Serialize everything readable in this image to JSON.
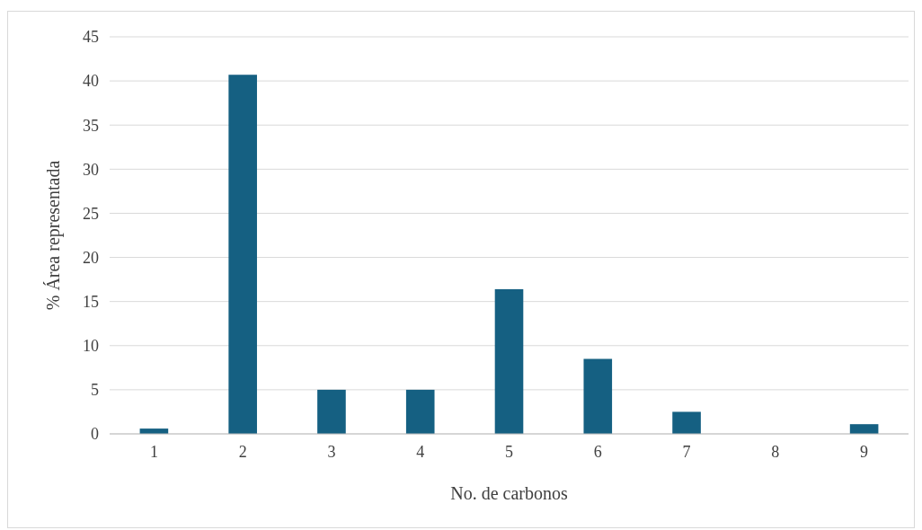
{
  "chart_data": {
    "type": "bar",
    "xlabel": "No. de carbonos",
    "ylabel": "% Área representada",
    "categories": [
      "1",
      "2",
      "3",
      "4",
      "5",
      "6",
      "7",
      "8",
      "9"
    ],
    "values": [
      0.6,
      40.7,
      5.0,
      5.0,
      16.4,
      8.5,
      2.5,
      0,
      1.1
    ],
    "color": "#156082",
    "ylim": [
      0,
      45
    ],
    "yticks": [
      0,
      5,
      10,
      15,
      20,
      25,
      30,
      35,
      40,
      45
    ],
    "grid": "y"
  }
}
